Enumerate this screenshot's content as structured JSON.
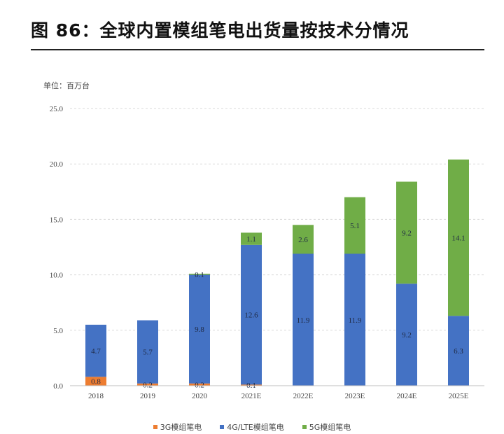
{
  "figure": {
    "title": "图 86：全球内置模组笔电出货量按技术分情况",
    "unit": "单位：百万台"
  },
  "colors": {
    "3g": "#ED7D31",
    "4g": "#4472C4",
    "5g": "#70AD47",
    "grid": "#d9d9d9",
    "axis": "#bfbfbf"
  },
  "chart_data": {
    "type": "bar",
    "stacked": true,
    "categories": [
      "2018",
      "2019",
      "2020",
      "2021E",
      "2022E",
      "2023E",
      "2024E",
      "2025E"
    ],
    "series": [
      {
        "name": "3G模组笔电",
        "values": [
          0.8,
          0.2,
          0.2,
          0.1,
          null,
          null,
          null,
          null
        ]
      },
      {
        "name": "4G/LTE模组笔电",
        "values": [
          4.7,
          5.7,
          9.8,
          12.6,
          11.9,
          11.9,
          9.2,
          6.3
        ]
      },
      {
        "name": "5G模组笔电",
        "values": [
          null,
          null,
          0.1,
          1.1,
          2.6,
          5.1,
          9.2,
          14.1
        ]
      }
    ],
    "yticks": [
      "0.0",
      "5.0",
      "10.0",
      "15.0",
      "20.0",
      "25.0"
    ],
    "ylim": [
      0,
      25
    ],
    "grid": true,
    "legend": "bottom"
  }
}
